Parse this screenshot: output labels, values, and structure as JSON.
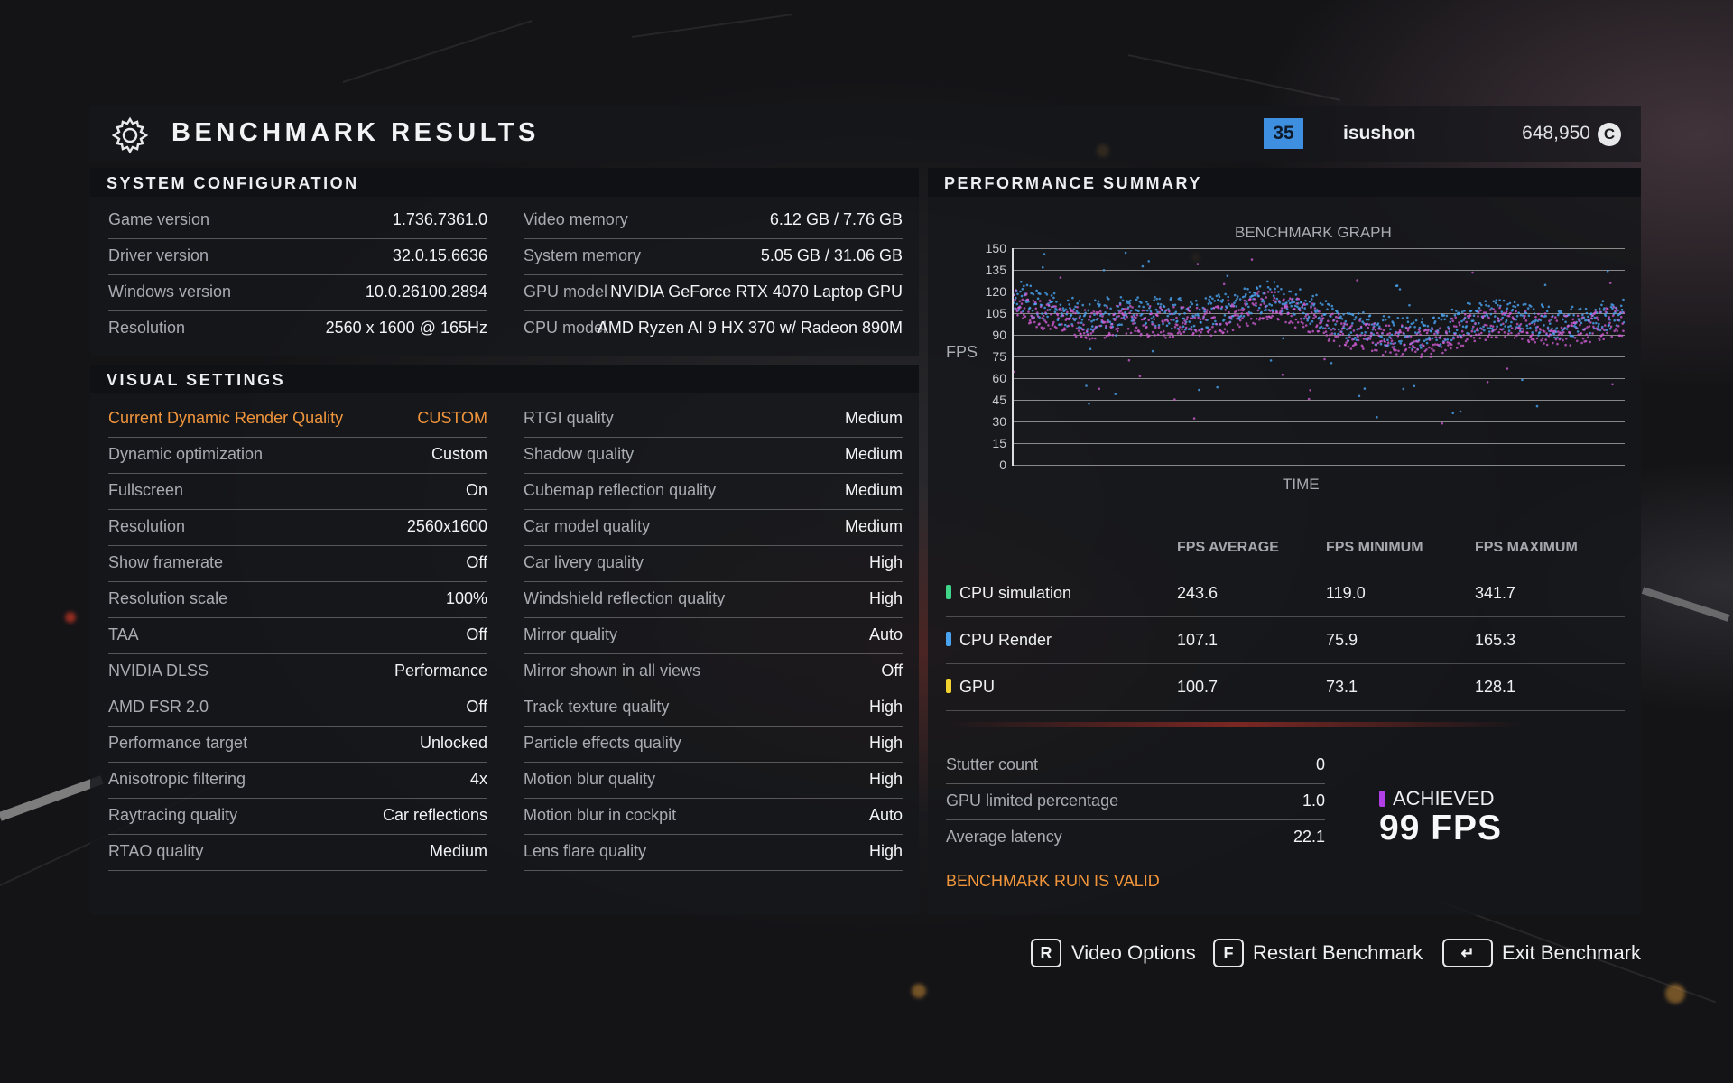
{
  "header": {
    "title": "BENCHMARK RESULTS",
    "level": "35",
    "username": "isushon",
    "credits": "648,950",
    "credits_icon_letter": "C"
  },
  "system_config": {
    "heading": "SYSTEM CONFIGURATION",
    "left": [
      {
        "label": "Game version",
        "value": "1.736.7361.0"
      },
      {
        "label": "Driver version",
        "value": "32.0.15.6636"
      },
      {
        "label": "Windows version",
        "value": "10.0.26100.2894"
      },
      {
        "label": "Resolution",
        "value": "2560 x 1600 @ 165Hz"
      }
    ],
    "right": [
      {
        "label": "Video memory",
        "value": "6.12 GB / 7.76 GB"
      },
      {
        "label": "System memory",
        "value": "5.05 GB / 31.06 GB"
      },
      {
        "label": "GPU model",
        "value": "NVIDIA GeForce RTX 4070 Laptop GPU"
      },
      {
        "label": "CPU model",
        "value": "AMD Ryzen AI 9 HX 370 w/ Radeon 890M"
      }
    ]
  },
  "visual_settings": {
    "heading": "VISUAL SETTINGS",
    "left": [
      {
        "label": "Current Dynamic Render Quality",
        "value": "CUSTOM"
      },
      {
        "label": "Dynamic optimization",
        "value": "Custom"
      },
      {
        "label": "Fullscreen",
        "value": "On"
      },
      {
        "label": "Resolution",
        "value": "2560x1600"
      },
      {
        "label": "Show framerate",
        "value": "Off"
      },
      {
        "label": "Resolution scale",
        "value": "100%"
      },
      {
        "label": "TAA",
        "value": "Off"
      },
      {
        "label": "NVIDIA DLSS",
        "value": "Performance"
      },
      {
        "label": "AMD FSR 2.0",
        "value": "Off"
      },
      {
        "label": "Performance target",
        "value": "Unlocked"
      },
      {
        "label": "Anisotropic filtering",
        "value": "4x"
      },
      {
        "label": "Raytracing quality",
        "value": "Car reflections"
      },
      {
        "label": "RTAO quality",
        "value": "Medium"
      }
    ],
    "right": [
      {
        "label": "RTGI quality",
        "value": "Medium"
      },
      {
        "label": "Shadow quality",
        "value": "Medium"
      },
      {
        "label": "Cubemap reflection quality",
        "value": "Medium"
      },
      {
        "label": "Car model quality",
        "value": "Medium"
      },
      {
        "label": "Car livery quality",
        "value": "High"
      },
      {
        "label": "Windshield reflection quality",
        "value": "High"
      },
      {
        "label": "Mirror quality",
        "value": "Auto"
      },
      {
        "label": "Mirror shown in all views",
        "value": "Off"
      },
      {
        "label": "Track texture quality",
        "value": "High"
      },
      {
        "label": "Particle effects quality",
        "value": "High"
      },
      {
        "label": "Motion blur quality",
        "value": "High"
      },
      {
        "label": "Motion blur in cockpit",
        "value": "Auto"
      },
      {
        "label": "Lens flare quality",
        "value": "High"
      }
    ]
  },
  "performance": {
    "heading": "PERFORMANCE SUMMARY",
    "graph_title": "BENCHMARK GRAPH",
    "y_axis_label": "FPS",
    "x_axis_label": "TIME",
    "columns": [
      "FPS AVERAGE",
      "FPS MINIMUM",
      "FPS MAXIMUM"
    ],
    "rows": [
      {
        "name": "CPU simulation",
        "color": "#3fd68a",
        "avg": "243.6",
        "min": "119.0",
        "max": "341.7"
      },
      {
        "name": "CPU Render",
        "color": "#4aa3f0",
        "avg": "107.1",
        "min": "75.9",
        "max": "165.3"
      },
      {
        "name": "GPU",
        "color": "#f2d22e",
        "avg": "100.7",
        "min": "73.1",
        "max": "128.1"
      }
    ],
    "stats": [
      {
        "label": "Stutter count",
        "value": "0"
      },
      {
        "label": "GPU limited percentage",
        "value": "1.0"
      },
      {
        "label": "Average latency",
        "value": "22.1"
      }
    ],
    "achieved_label": "ACHIEVED",
    "achieved_value": "99 FPS",
    "achieved_color": "#b23ee8",
    "valid_text": "BENCHMARK RUN IS VALID"
  },
  "chart_data": {
    "type": "scatter",
    "title": "BENCHMARK GRAPH",
    "xlabel": "TIME",
    "ylabel": "FPS",
    "ylim": [
      0,
      150
    ],
    "yticks": [
      "150",
      "135",
      "120",
      "105",
      "90",
      "75",
      "60",
      "45",
      "30",
      "15",
      "0"
    ],
    "grid": true,
    "series": [
      {
        "color": "#4aa3f0",
        "trend_x": [
          0,
          0.05,
          0.12,
          0.18,
          0.22,
          0.3,
          0.38,
          0.42,
          0.5,
          0.55,
          0.6,
          0.68,
          0.75,
          0.8,
          0.9,
          1.0
        ],
        "trend_y": [
          118,
          110,
          103,
          108,
          106,
          104,
          112,
          118,
          106,
          96,
          93,
          90,
          102,
          104,
          98,
          106
        ]
      },
      {
        "color": "#d45ed8",
        "trend_x": [
          0,
          0.05,
          0.12,
          0.18,
          0.22,
          0.3,
          0.38,
          0.42,
          0.5,
          0.55,
          0.6,
          0.68,
          0.75,
          0.8,
          0.9,
          1.0
        ],
        "trend_y": [
          112,
          104,
          97,
          101,
          99,
          98,
          106,
          112,
          100,
          90,
          87,
          84,
          96,
          98,
          92,
          100
        ]
      }
    ]
  },
  "actions": [
    {
      "key": "R",
      "label": "Video Options"
    },
    {
      "key": "F",
      "label": "Restart Benchmark"
    },
    {
      "key": "↵",
      "label": "Exit Benchmark"
    }
  ]
}
